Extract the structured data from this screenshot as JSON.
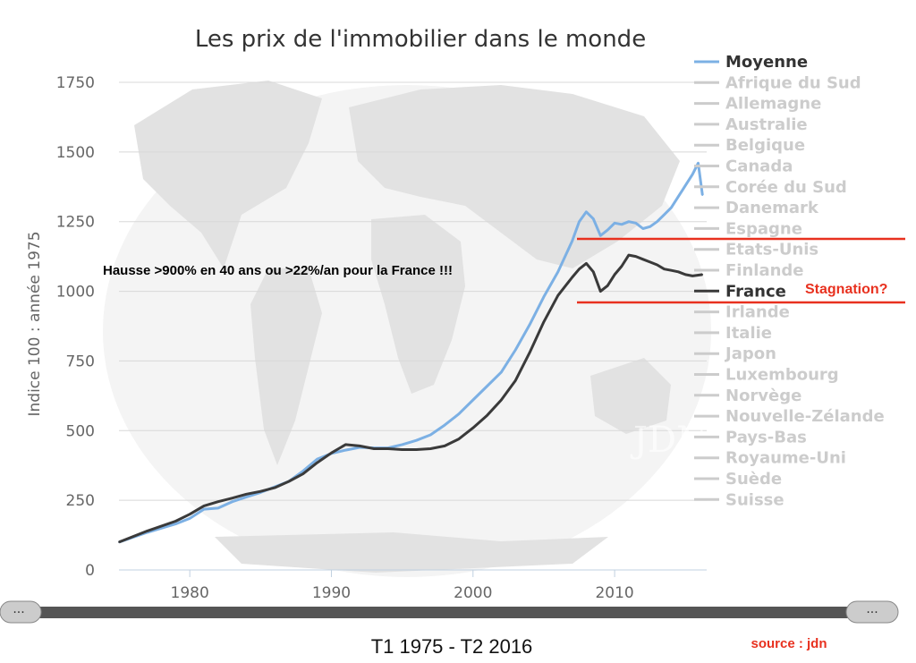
{
  "chart_data": {
    "type": "line",
    "title": "Les prix de l'immobilier dans le monde",
    "ylabel": "Indice 100 : année 1975",
    "xlabel": "",
    "xlim": [
      1975,
      2016.5
    ],
    "ylim": [
      0,
      1750
    ],
    "xticks": [
      1980,
      1990,
      2000,
      2010
    ],
    "yticks": [
      0,
      250,
      500,
      750,
      1000,
      1250,
      1500,
      1750
    ],
    "grid": "horizontal",
    "legend_position": "right",
    "legend": [
      {
        "name": "Moyenne",
        "active": true,
        "color": "#7cb0e4"
      },
      {
        "name": "Afrique du Sud",
        "active": false
      },
      {
        "name": "Allemagne",
        "active": false
      },
      {
        "name": "Australie",
        "active": false
      },
      {
        "name": "Belgique",
        "active": false
      },
      {
        "name": "Canada",
        "active": false
      },
      {
        "name": "Corée du Sud",
        "active": false
      },
      {
        "name": "Danemark",
        "active": false
      },
      {
        "name": "Espagne",
        "active": false
      },
      {
        "name": "Etats-Unis",
        "active": false
      },
      {
        "name": "Finlande",
        "active": false
      },
      {
        "name": "France",
        "active": true,
        "color": "#3a3a3a"
      },
      {
        "name": "Irlande",
        "active": false
      },
      {
        "name": "Italie",
        "active": false
      },
      {
        "name": "Japon",
        "active": false
      },
      {
        "name": "Luxembourg",
        "active": false
      },
      {
        "name": "Norvège",
        "active": false
      },
      {
        "name": "Nouvelle-Zélande",
        "active": false
      },
      {
        "name": "Pays-Bas",
        "active": false
      },
      {
        "name": "Royaume-Uni",
        "active": false
      },
      {
        "name": "Suède",
        "active": false
      },
      {
        "name": "Suisse",
        "active": false
      }
    ],
    "series": [
      {
        "name": "Moyenne",
        "color": "#7cb0e4",
        "x": [
          1975,
          1977,
          1979,
          1980,
          1981,
          1982,
          1983,
          1984,
          1985,
          1986,
          1987,
          1988,
          1989,
          1990,
          1991,
          1992,
          1993,
          1994,
          1995,
          1996,
          1997,
          1998,
          1999,
          2000,
          2001,
          2002,
          2003,
          2004,
          2005,
          2006,
          2007,
          2007.5,
          2008,
          2008.5,
          2009,
          2009.5,
          2010,
          2010.5,
          2011,
          2011.5,
          2012,
          2012.5,
          2013,
          2013.5,
          2014,
          2014.5,
          2015,
          2015.5,
          2015.9,
          2016.2
        ],
        "values": [
          100,
          135,
          165,
          185,
          218,
          222,
          245,
          262,
          278,
          298,
          318,
          355,
          398,
          418,
          430,
          440,
          438,
          438,
          450,
          465,
          485,
          520,
          560,
          610,
          660,
          710,
          790,
          880,
          980,
          1070,
          1180,
          1250,
          1285,
          1260,
          1200,
          1220,
          1245,
          1240,
          1250,
          1245,
          1225,
          1232,
          1250,
          1275,
          1300,
          1340,
          1380,
          1420,
          1460,
          1345
        ]
      },
      {
        "name": "France",
        "color": "#3a3a3a",
        "x": [
          1975,
          1977,
          1979,
          1980,
          1981,
          1982,
          1983,
          1984,
          1985,
          1986,
          1987,
          1988,
          1989,
          1990,
          1991,
          1992,
          1993,
          1994,
          1995,
          1996,
          1997,
          1998,
          1999,
          2000,
          2001,
          2002,
          2003,
          2004,
          2005,
          2006,
          2007,
          2007.5,
          2008,
          2008.5,
          2009,
          2009.5,
          2010,
          2010.5,
          2011,
          2011.5,
          2012,
          2012.5,
          2013,
          2013.5,
          2014,
          2014.5,
          2015,
          2015.5,
          2016.2
        ],
        "values": [
          100,
          140,
          175,
          200,
          230,
          245,
          258,
          272,
          282,
          295,
          318,
          345,
          385,
          420,
          450,
          445,
          435,
          435,
          432,
          432,
          435,
          445,
          470,
          510,
          555,
          610,
          680,
          780,
          890,
          985,
          1050,
          1080,
          1100,
          1070,
          1000,
          1020,
          1060,
          1090,
          1130,
          1125,
          1115,
          1105,
          1095,
          1080,
          1075,
          1070,
          1060,
          1055,
          1060
        ]
      }
    ],
    "annotations": [
      "Hausse >900% en 40 ans ou >22%/an pour la France !!!",
      "Stagnation?",
      "JDN"
    ],
    "reference_lines": [
      {
        "y": 1185,
        "color": "#e8311f"
      },
      {
        "y": 960,
        "color": "#e8311f"
      }
    ]
  },
  "footer": {
    "period": "T1 1975 - T2 2016",
    "source": "source : jdn"
  },
  "navigator": {
    "left_handle": "···",
    "right_handle": "···"
  }
}
